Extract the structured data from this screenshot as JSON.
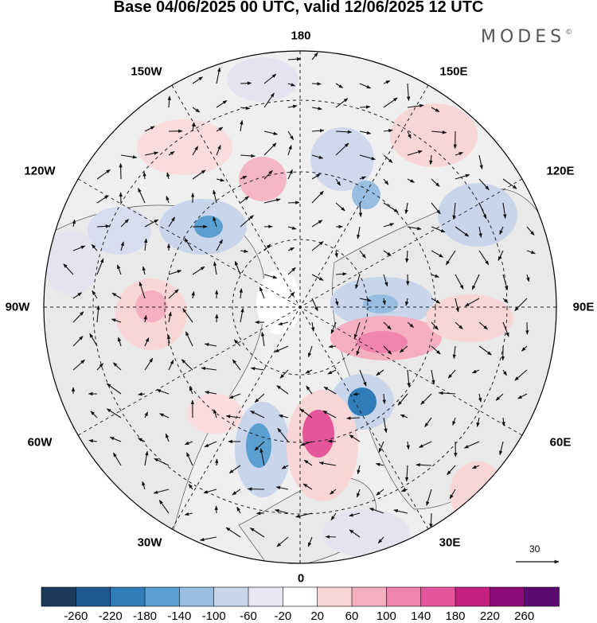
{
  "header": {
    "title": "Base 04/06/2025 00 UTC, valid 12/06/2025 12 UTC",
    "logo_text": "MODES",
    "logo_mark": "©"
  },
  "map": {
    "projection": "north polar stereographic",
    "longitude_labels": {
      "top": "180",
      "top_left": "150W",
      "top_right": "150E",
      "upper_left": "120W",
      "upper_right": "120E",
      "left": "90W",
      "right": "90E",
      "lower_left": "60W",
      "lower_right": "60E",
      "bottom_left": "30W",
      "bottom_right": "30E",
      "bottom": "0"
    },
    "reference_vector": "30",
    "colors": {
      "land_background": "#eeeeee",
      "ocean_background": "#ffffff",
      "graticule": "#222222",
      "vectors": "#111111"
    }
  },
  "colorbar": {
    "labels": [
      "-260",
      "-220",
      "-180",
      "-140",
      "-100",
      "-60",
      "-20",
      "20",
      "60",
      "100",
      "140",
      "180",
      "220",
      "260"
    ],
    "colors": [
      "#1c3a5c",
      "#1f5a8e",
      "#2f7cb8",
      "#5a9fd0",
      "#97bde0",
      "#c8d5ea",
      "#e7e7f2",
      "#ffffff",
      "#f9d6d6",
      "#f5afc0",
      "#ef85ad",
      "#e4559b",
      "#c51f82",
      "#8e0b7a",
      "#5b0a6f"
    ]
  }
}
